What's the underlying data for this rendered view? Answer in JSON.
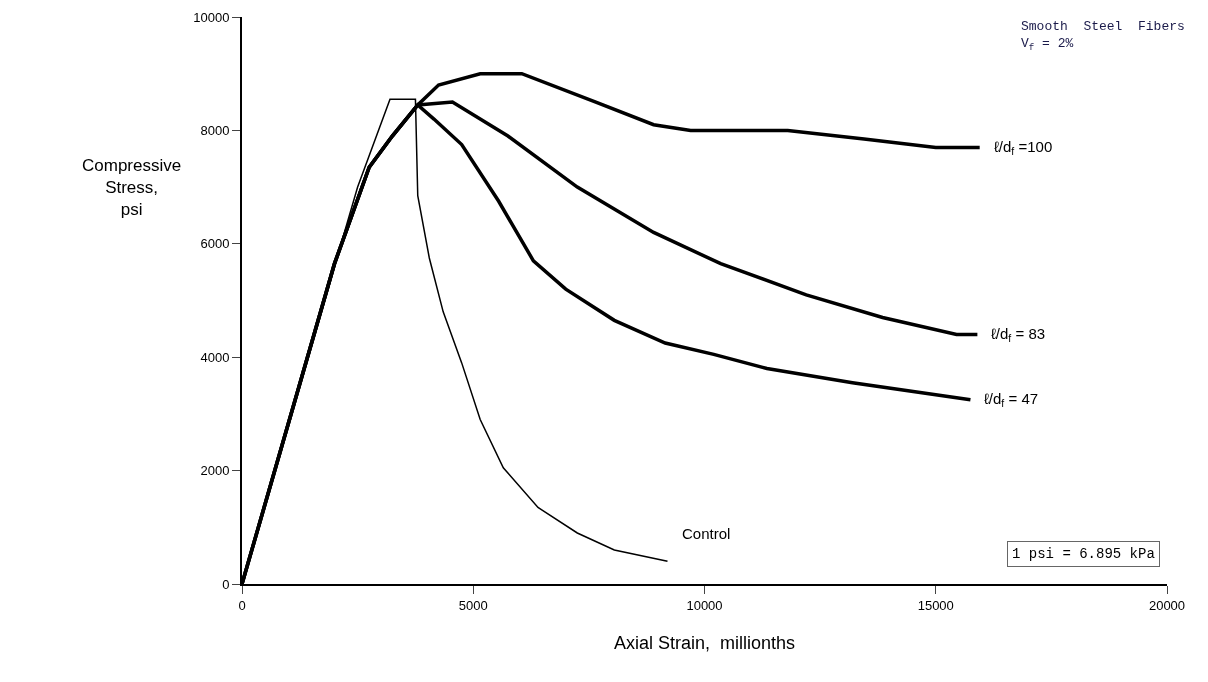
{
  "chart_data": {
    "type": "line",
    "xlabel": "Axial Strain,  millionths",
    "ylabel": "Compressive\nStress,\npsi",
    "xlim": [
      0,
      20000
    ],
    "xticks": [
      0,
      5000,
      10000,
      15000,
      20000
    ],
    "ylim": [
      0,
      10000
    ],
    "yticks": [
      0,
      2000,
      4000,
      6000,
      8000,
      10000
    ],
    "grid": false,
    "legend": false,
    "marker": "none",
    "line_style": "solid",
    "annotations": [
      "Smooth  Steel  Fibers\nV$_{f}$ = 2%",
      "1 psi = 6.895 kPa"
    ],
    "series": [
      {
        "name": "ℓ/d$_{f}$ =100",
        "color": "#000000",
        "x": [
          0,
          2000,
          2750,
          3250,
          3800,
          4250,
          5150,
          6050,
          7650,
          8900,
          9700,
          11800,
          13450,
          15000,
          15950
        ],
        "values": [
          0,
          5650,
          7350,
          7900,
          8450,
          8800,
          9000,
          9000,
          8500,
          8100,
          8000,
          8000,
          7850,
          7700,
          7700
        ]
      },
      {
        "name": "ℓ/d$_{f}$ = 83",
        "color": "#000000",
        "x": [
          0,
          2000,
          2750,
          3250,
          3800,
          4550,
          5750,
          7250,
          8900,
          10350,
          12200,
          13850,
          15450,
          15900
        ],
        "values": [
          0,
          5650,
          7350,
          7900,
          8450,
          8500,
          7900,
          7000,
          6200,
          5650,
          5100,
          4700,
          4400,
          4400
        ]
      },
      {
        "name": "ℓ/d$_{f}$ = 47",
        "color": "#000000",
        "x": [
          0,
          2000,
          2750,
          3250,
          3800,
          4150,
          4750,
          5550,
          6300,
          7000,
          8050,
          9150,
          10200,
          11350,
          13200,
          15750
        ],
        "values": [
          0,
          5650,
          7350,
          7900,
          8450,
          8200,
          7750,
          6750,
          5700,
          5200,
          4650,
          4250,
          4050,
          3800,
          3550,
          3250
        ]
      },
      {
        "name": "Control",
        "color": "#000000",
        "x": [
          0,
          2500,
          3200,
          3750,
          3800,
          4050,
          4350,
          4750,
          5150,
          5650,
          6400,
          7250,
          8050,
          9200
        ],
        "values": [
          0,
          7000,
          8550,
          8550,
          6850,
          5750,
          4800,
          3900,
          2900,
          2050,
          1350,
          900,
          600,
          400
        ]
      }
    ]
  }
}
